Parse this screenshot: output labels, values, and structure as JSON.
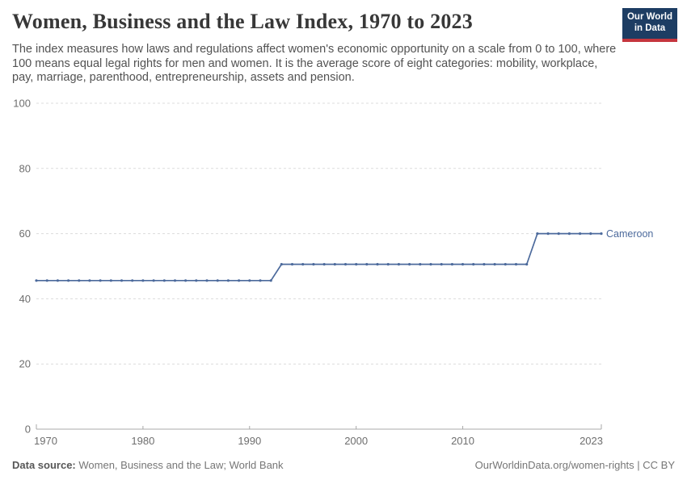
{
  "header": {
    "title": "Women, Business and the Law Index, 1970 to 2023",
    "subtitle": "The index measures how laws and regulations affect women's economic opportunity on a scale from 0 to 100, where 100 means equal legal rights for men and women. It is the average score of eight categories: mobility, workplace, pay, marriage, parenthood, entrepreneurship, assets and pension.",
    "logo_line1": "Our World",
    "logo_line2": "in Data"
  },
  "chart_data": {
    "type": "line",
    "title": "Women, Business and the Law Index, 1970 to 2023",
    "xlabel": "",
    "ylabel": "",
    "xlim": [
      1970,
      2023
    ],
    "ylim": [
      0,
      100
    ],
    "xticks": [
      1970,
      1980,
      1990,
      2000,
      2010,
      2023
    ],
    "yticks": [
      0,
      20,
      40,
      60,
      80,
      100
    ],
    "grid": "horizontal-dashed",
    "legend_position": "end-of-line-label",
    "series": [
      {
        "name": "Cameroon",
        "color": "#4c6a9c",
        "x": [
          1970,
          1971,
          1972,
          1973,
          1974,
          1975,
          1976,
          1977,
          1978,
          1979,
          1980,
          1981,
          1982,
          1983,
          1984,
          1985,
          1986,
          1987,
          1988,
          1989,
          1990,
          1991,
          1992,
          1993,
          1994,
          1995,
          1996,
          1997,
          1998,
          1999,
          2000,
          2001,
          2002,
          2003,
          2004,
          2005,
          2006,
          2007,
          2008,
          2009,
          2010,
          2011,
          2012,
          2013,
          2014,
          2015,
          2016,
          2017,
          2018,
          2019,
          2020,
          2021,
          2022,
          2023
        ],
        "values": [
          45.6,
          45.6,
          45.6,
          45.6,
          45.6,
          45.6,
          45.6,
          45.6,
          45.6,
          45.6,
          45.6,
          45.6,
          45.6,
          45.6,
          45.6,
          45.6,
          45.6,
          45.6,
          45.6,
          45.6,
          45.6,
          45.6,
          45.6,
          50.6,
          50.6,
          50.6,
          50.6,
          50.6,
          50.6,
          50.6,
          50.6,
          50.6,
          50.6,
          50.6,
          50.6,
          50.6,
          50.6,
          50.6,
          50.6,
          50.6,
          50.6,
          50.6,
          50.6,
          50.6,
          50.6,
          50.6,
          50.6,
          60,
          60,
          60,
          60,
          60,
          60,
          60
        ]
      }
    ],
    "colors": {
      "line": "#4c6a9c",
      "grid": "#dcdcdc",
      "axis": "#a8a8a8",
      "tick_text": "#6e6e6e"
    }
  },
  "footer": {
    "datasource_label": "Data source:",
    "datasource_value": "Women, Business and the Law; World Bank",
    "credit": "OurWorldinData.org/women-rights | CC BY"
  },
  "brand": {
    "navy": "#1d3d63",
    "red": "#c5363e"
  }
}
